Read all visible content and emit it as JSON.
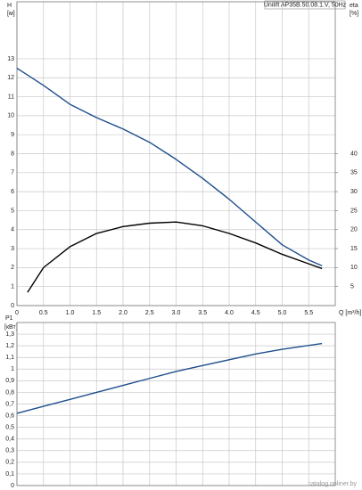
{
  "chart_data": [
    {
      "type": "line",
      "title": "Unilift AP35B.50.08.1.V, 50Hz",
      "ylabel": "H",
      "yunit": "[м]",
      "y2label": "eta",
      "y2unit": "[%]",
      "xlabel": "Q [m³/h]",
      "xlim": [
        0,
        6.0
      ],
      "xticks": [
        0,
        0.5,
        {
          "value": 1,
          "label": "1.0"
        },
        1.5,
        {
          "value": 2,
          "label": "2.0"
        },
        2.5,
        {
          "value": 3,
          "label": "3.0"
        },
        3.5,
        {
          "value": 4,
          "label": "4.0"
        },
        4.5,
        {
          "value": 5,
          "label": "5.0"
        },
        5.5
      ],
      "ylim": [
        0,
        16
      ],
      "yticks": [
        0,
        1,
        2,
        3,
        4,
        5,
        6,
        7,
        8,
        9,
        10,
        11,
        12,
        13
      ],
      "y2lim": [
        0,
        80
      ],
      "y2ticks": [
        5,
        10,
        15,
        20,
        25,
        30,
        35,
        40
      ],
      "grid": true,
      "series": [
        {
          "color": "#1f4e8c",
          "x": [
            0,
            0.5,
            1,
            1.5,
            2,
            2.5,
            3,
            3.5,
            4,
            4.5,
            5,
            5.5,
            5.75
          ],
          "values": [
            12.5,
            11.6,
            10.6,
            9.9,
            9.3,
            8.6,
            7.7,
            6.7,
            5.6,
            4.4,
            3.2,
            2.4,
            2.1
          ]
        },
        {
          "color": "#000000",
          "axis": "y2",
          "x": [
            0.2,
            0.5,
            1,
            1.5,
            2,
            2.5,
            3,
            3.5,
            4,
            4.5,
            5,
            5.5,
            5.75
          ],
          "values": [
            3.5,
            10,
            15.5,
            19,
            20.8,
            21.7,
            22,
            21,
            19,
            16.5,
            13.5,
            11,
            9.75
          ]
        }
      ]
    },
    {
      "type": "line",
      "ylabel": "P1",
      "yunit": "[кВт]",
      "xlim": [
        0,
        6.0
      ],
      "ylim": [
        0,
        1.4
      ],
      "yticks": [
        0,
        {
          "value": 0.1,
          "label": "0,1"
        },
        {
          "value": 0.2,
          "label": "0,2"
        },
        {
          "value": 0.3,
          "label": "0,3"
        },
        {
          "value": 0.4,
          "label": "0,4"
        },
        {
          "value": 0.5,
          "label": "0,5"
        },
        {
          "value": 0.6,
          "label": "0,6"
        },
        {
          "value": 0.7,
          "label": "0,7"
        },
        {
          "value": 0.8,
          "label": "0,8"
        },
        {
          "value": 0.9,
          "label": "0,9"
        },
        1,
        {
          "value": 1.1,
          "label": "1,1"
        },
        {
          "value": 1.2,
          "label": "1,2"
        },
        {
          "value": 1.3,
          "label": "1,3"
        }
      ],
      "grid": true,
      "series": [
        {
          "color": "#1f4e8c",
          "x": [
            0,
            0.5,
            1,
            1.5,
            2,
            2.5,
            3,
            3.5,
            4,
            4.5,
            5,
            5.75
          ],
          "values": [
            0.62,
            0.68,
            0.74,
            0.8,
            0.86,
            0.92,
            0.98,
            1.03,
            1.08,
            1.13,
            1.17,
            1.22
          ]
        }
      ]
    }
  ],
  "watermark": "catalog.onliner.by"
}
